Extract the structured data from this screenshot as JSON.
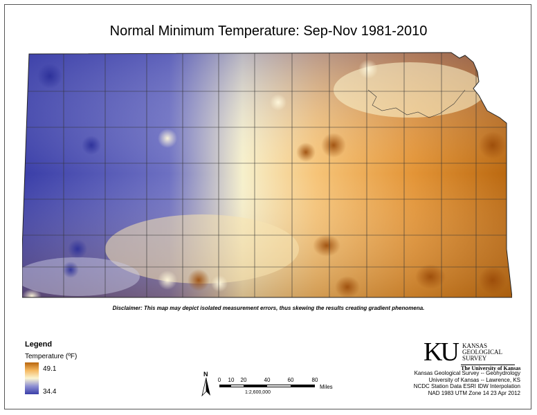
{
  "title": "Normal Minimum Temperature:  Sep-Nov 1981-2010",
  "disclaimer": "Disclaimer: This map may depict isolated measurement errors, thus skewing the results creating gradient phenomena.",
  "legend": {
    "heading": "Legend",
    "variable": "Temperature (ºF)",
    "max": "49.1",
    "min": "34.4",
    "colors": {
      "cold": "#3a3ea8",
      "mid": "#fbf5d2",
      "warm": "#b8660e"
    }
  },
  "north_arrow": {
    "label": "N",
    "icon": "north-arrow-icon"
  },
  "scale_bar": {
    "ticks": [
      "0",
      "10",
      "20",
      "40",
      "60",
      "80"
    ],
    "unit": "Miles",
    "ratio": "1:2,600,000"
  },
  "logo": {
    "mark": "KU",
    "org_line1": "KANSAS",
    "org_line2": "GEOLOGICAL",
    "org_line3": "SURVEY",
    "university": "The University of Kansas"
  },
  "credits": [
    "Kansas Geological Survey -- Geohydrology",
    "University of Kansas -- Lawrence, KS",
    "NCDC Station Data  ESRI IDW Interpolation",
    "NAD 1983 UTM Zone 14  23 Apr 2012"
  ]
}
